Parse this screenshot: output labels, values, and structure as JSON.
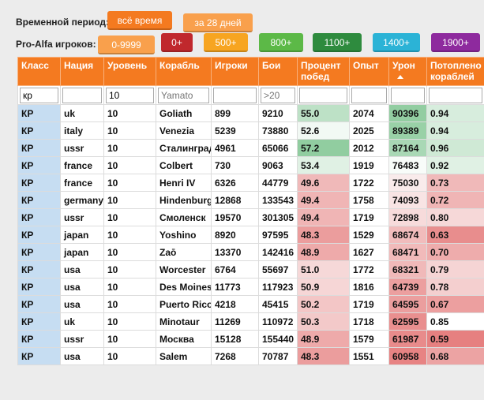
{
  "filters": {
    "period_label": "Временной период:",
    "period_buttons": [
      "всё время",
      "за 28 дней"
    ],
    "players_label": "Pro-Alfa игроков:",
    "players_buttons": [
      "0-9999",
      "0+",
      "500+",
      "800+",
      "1100+",
      "1400+",
      "1900+"
    ]
  },
  "table": {
    "headers": [
      "Класс",
      "Нация",
      "Уровень",
      "Корабль",
      "Игроки",
      "Бои",
      "Процент побед",
      "Опыт",
      "Урон",
      "Потоплено кораблей"
    ],
    "filter_inputs": {
      "class": "кр",
      "level": "10",
      "ship_placeholder": "Yamato",
      "battles_placeholder": ">20"
    },
    "rows": [
      [
        "КР",
        "uk",
        "10",
        "Goliath",
        "899",
        "9210",
        "55.0",
        "2074",
        "90396",
        "0.94"
      ],
      [
        "КР",
        "italy",
        "10",
        "Venezia",
        "5239",
        "73880",
        "52.6",
        "2025",
        "89389",
        "0.94"
      ],
      [
        "КР",
        "ussr",
        "10",
        "Сталинград",
        "4961",
        "65066",
        "57.2",
        "2012",
        "87164",
        "0.96"
      ],
      [
        "КР",
        "france",
        "10",
        "Colbert",
        "730",
        "9063",
        "53.4",
        "1919",
        "76483",
        "0.92"
      ],
      [
        "КР",
        "france",
        "10",
        "Henri IV",
        "6326",
        "44779",
        "49.6",
        "1722",
        "75030",
        "0.73"
      ],
      [
        "КР",
        "germany",
        "10",
        "Hindenburg",
        "12868",
        "133543",
        "49.4",
        "1758",
        "74093",
        "0.72"
      ],
      [
        "КР",
        "ussr",
        "10",
        "Смоленск",
        "19570",
        "301305",
        "49.4",
        "1719",
        "72898",
        "0.80"
      ],
      [
        "КР",
        "japan",
        "10",
        "Yoshino",
        "8920",
        "97595",
        "48.3",
        "1529",
        "68674",
        "0.63"
      ],
      [
        "КР",
        "japan",
        "10",
        "Zaō",
        "13370",
        "142416",
        "48.9",
        "1627",
        "68471",
        "0.70"
      ],
      [
        "КР",
        "usa",
        "10",
        "Worcester",
        "6764",
        "55697",
        "51.0",
        "1772",
        "68321",
        "0.79"
      ],
      [
        "КР",
        "usa",
        "10",
        "Des Moines",
        "11773",
        "117923",
        "50.9",
        "1816",
        "64739",
        "0.78"
      ],
      [
        "КР",
        "usa",
        "10",
        "Puerto Rico",
        "4218",
        "45415",
        "50.2",
        "1719",
        "64595",
        "0.67"
      ],
      [
        "КР",
        "uk",
        "10",
        "Minotaur",
        "11269",
        "110972",
        "50.3",
        "1718",
        "62595",
        "0.85"
      ],
      [
        "КР",
        "ussr",
        "10",
        "Москва",
        "15128",
        "155440",
        "48.9",
        "1579",
        "61987",
        "0.59"
      ],
      [
        "КР",
        "usa",
        "10",
        "Salem",
        "7268",
        "70787",
        "48.3",
        "1551",
        "60958",
        "0.68"
      ]
    ]
  }
}
